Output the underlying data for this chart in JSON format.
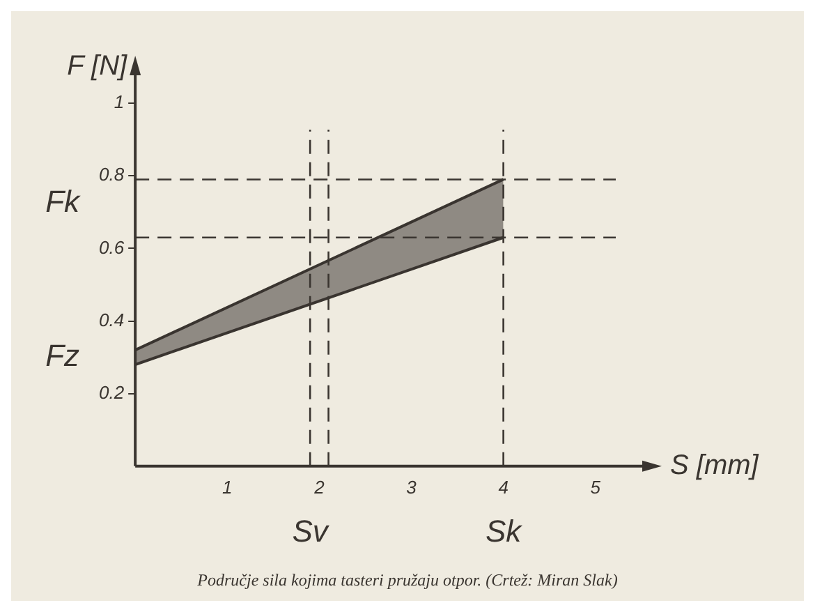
{
  "chart_data": {
    "type": "line",
    "xlabel": "S [mm]",
    "ylabel": "F [N]",
    "x": [
      0,
      4
    ],
    "series": [
      {
        "color": "#3a3530",
        "values": [
          0.28,
          0.63
        ]
      },
      {
        "color": "#3a3530",
        "values": [
          0.32,
          0.79
        ],
        "lower": [
          0.28,
          0.63
        ],
        "upper": [
          0.32,
          0.79
        ]
      }
    ],
    "xlim": [
      0,
      5.6
    ],
    "ylim": [
      0,
      1.1
    ],
    "xticks": [
      1,
      2,
      3,
      4,
      5
    ],
    "yticks": [
      0.2,
      0.4,
      0.6,
      0.8,
      1
    ],
    "grid": false,
    "legend": false,
    "marker": "none",
    "line_style": "solid",
    "ref_lines": [
      {
        "axis": "y",
        "value": 0.79,
        "label": "Fk",
        "line_style": "dashed"
      },
      {
        "axis": "y",
        "value": 0.63,
        "line_style": "dashed"
      },
      {
        "axis": "x",
        "value": 1.9,
        "label": "Sv",
        "line_style": "dashed"
      },
      {
        "axis": "x",
        "value": 2.1,
        "line_style": "dashed"
      },
      {
        "axis": "x",
        "value": 4,
        "label": "Sk",
        "line_style": "dashed"
      }
    ],
    "annotations": [
      {
        "text": "Fz",
        "x": 0,
        "y": 0.3
      },
      "Područje sila kojima tasteri pružaju otpor. (Crtež: Miran Slak)"
    ]
  }
}
